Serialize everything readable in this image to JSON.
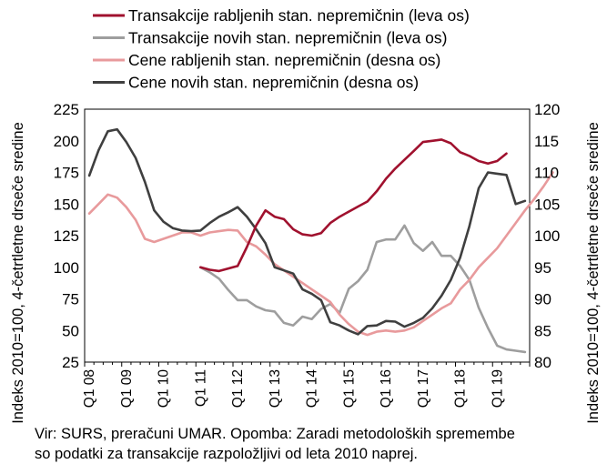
{
  "chart_data": {
    "type": "line",
    "legend_position": "top",
    "grid": false,
    "ylabel_left": "Indeks 2010=100, 4-četrtletne drseče sredine",
    "ylabel_right": "Indeks 2010=100, 4-četrtletne drseče sredine",
    "y_left_lim": [
      25,
      225
    ],
    "y_left_ticks": [
      "25",
      "50",
      "75",
      "100",
      "125",
      "150",
      "175",
      "200",
      "225"
    ],
    "y_right_lim": [
      80,
      120
    ],
    "y_right_ticks": [
      "80",
      "85",
      "90",
      "95",
      "100",
      "105",
      "110",
      "115",
      "120"
    ],
    "x_labels": [
      "Q1 08",
      "Q1 09",
      "Q1 10",
      "Q1 11",
      "Q1 12",
      "Q1 13",
      "Q1 14",
      "Q1 15",
      "Q1 16",
      "Q1 17",
      "Q1 18",
      "Q1 19"
    ],
    "series": [
      {
        "name": "Transakcije rabljenih stan. nepremičnin (leva os)",
        "axis": "left",
        "color": "#a0112e",
        "start_index": 12,
        "values": [
          100,
          98,
          97,
          99,
          101,
          116,
          133,
          145,
          140,
          138,
          130,
          126,
          125,
          127,
          135,
          140,
          144,
          148,
          152,
          160,
          170,
          178,
          185,
          192,
          199,
          200,
          201,
          198,
          191,
          188,
          184,
          182,
          184,
          190
        ]
      },
      {
        "name": "Transakcije novih stan. nepremičnin (leva os)",
        "axis": "left",
        "color": "#9e9e9e",
        "start_index": 12,
        "values": [
          100,
          96,
          91,
          82,
          74,
          74,
          69,
          66,
          65,
          56,
          54,
          61,
          59,
          67,
          71,
          64,
          83,
          89,
          98,
          120,
          122,
          122,
          133,
          119,
          113,
          120,
          109,
          109,
          101,
          90,
          68,
          52,
          38,
          35,
          34,
          33
        ]
      },
      {
        "name": "Cene rabljenih stan. nepremičnin (desna os)",
        "axis": "right",
        "color": "#e89a9c",
        "start_index": 0,
        "values": [
          103.5,
          105,
          106.5,
          106,
          104.5,
          102.5,
          99.5,
          99,
          99.5,
          100,
          100.5,
          100.5,
          100,
          100.5,
          100.7,
          100.9,
          100.8,
          99,
          98.3,
          97,
          95.5,
          94.5,
          93.5,
          92.5,
          91.5,
          90.5,
          89.5,
          87.5,
          86,
          84.8,
          84.3,
          84.8,
          85,
          84.8,
          85,
          85.5,
          86.5,
          87.5,
          88.5,
          89.3,
          91.5,
          93,
          95,
          96.5,
          98,
          100,
          102,
          104,
          105.8,
          107.8,
          110
        ]
      },
      {
        "name": "Cene novih stan. nepremičnin (desna os)",
        "axis": "right",
        "color": "#3f3f3f",
        "start_index": 0,
        "values": [
          109.5,
          113.5,
          116.5,
          116.8,
          114.8,
          112.3,
          108.5,
          104,
          102.2,
          101.2,
          100.8,
          100.7,
          100.8,
          102,
          103,
          103.7,
          104.5,
          103,
          101,
          98.8,
          95,
          94.5,
          94,
          91.5,
          90.8,
          89.8,
          86.3,
          85.8,
          85,
          84.4,
          85.7,
          85.8,
          86.5,
          86.4,
          85.6,
          86.2,
          87,
          88.5,
          90.5,
          93,
          96.5,
          101.5,
          107.5,
          110,
          109.8,
          109.6,
          105,
          105.5
        ]
      }
    ]
  },
  "source_lines": [
    "Vir: SURS, preračuni UMAR. Opomba: Zaradi metodoloških spremembe",
    "so podatki za transakcije razpoložljivi od leta 2010 naprej."
  ]
}
